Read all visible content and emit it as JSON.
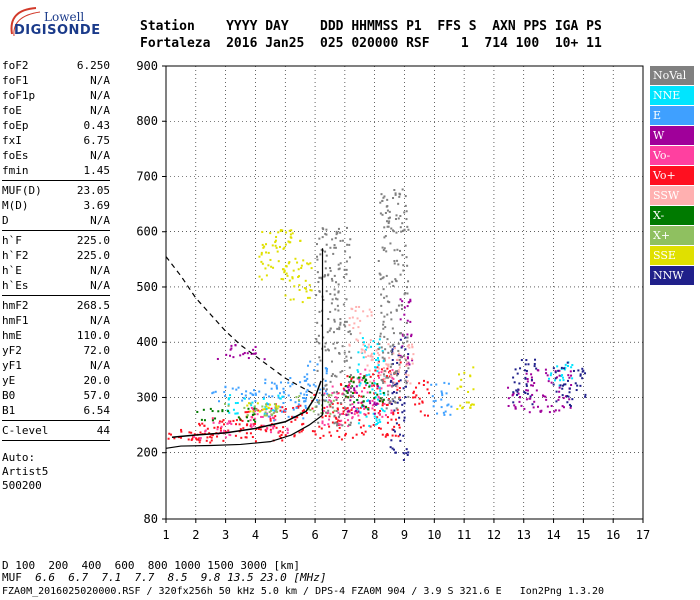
{
  "logo": {
    "line1": "Lowell",
    "line2": "DIGISONDE",
    "swoosh_color": "#d23a2a",
    "text_color": "#1a3a8a"
  },
  "header": {
    "columns": "Station    YYYY DAY    DDD HHMMSS P1  FFS S  AXN PPS IGA PS",
    "values": "Fortaleza  2016 Jan25  025 020000 RSF    1  714 100  10+ 11"
  },
  "params": {
    "group1": [
      {
        "name": "foF2",
        "value": "6.250"
      },
      {
        "name": "foF1",
        "value": "N/A"
      },
      {
        "name": "foF1p",
        "value": "N/A"
      },
      {
        "name": "foE",
        "value": "N/A"
      },
      {
        "name": "foEp",
        "value": "0.43"
      },
      {
        "name": "fxI",
        "value": "6.75"
      },
      {
        "name": "foEs",
        "value": "N/A"
      },
      {
        "name": "fmin",
        "value": "1.45"
      }
    ],
    "group2": [
      {
        "name": "MUF(D)",
        "value": "23.05"
      },
      {
        "name": "M(D)",
        "value": "3.69"
      },
      {
        "name": "D",
        "value": "N/A"
      }
    ],
    "group3": [
      {
        "name": "h`F",
        "value": "225.0"
      },
      {
        "name": "h`F2",
        "value": "225.0"
      },
      {
        "name": "h`E",
        "value": "N/A"
      },
      {
        "name": "h`Es",
        "value": "N/A"
      }
    ],
    "group4": [
      {
        "name": "hmF2",
        "value": "268.5"
      },
      {
        "name": "hmF1",
        "value": "N/A"
      },
      {
        "name": "hmE",
        "value": "110.0"
      },
      {
        "name": "yF2",
        "value": "72.0"
      },
      {
        "name": "yF1",
        "value": "N/A"
      },
      {
        "name": "yE",
        "value": "20.0"
      },
      {
        "name": "B0",
        "value": "57.0"
      },
      {
        "name": "B1",
        "value": "6.54"
      }
    ],
    "group5": [
      {
        "name": "C-level",
        "value": "44"
      }
    ],
    "auto": [
      "Auto:",
      "Artist5",
      "500200"
    ]
  },
  "legend": [
    {
      "label": "NoVal",
      "bg": "#808080",
      "fg": "#ffffff"
    },
    {
      "label": "NNE",
      "bg": "#00e5ff",
      "fg": "#ffffff"
    },
    {
      "label": "E",
      "bg": "#3fa0ff",
      "fg": "#ffffff"
    },
    {
      "label": "W",
      "bg": "#a0009a",
      "fg": "#ffffff"
    },
    {
      "label": "Vo-",
      "bg": "#ff40a0",
      "fg": "#ffffff"
    },
    {
      "label": "Vo+",
      "bg": "#ff1020",
      "fg": "#ffffff"
    },
    {
      "label": "SSW",
      "bg": "#ffb0b0",
      "fg": "#ffffff"
    },
    {
      "label": "X-",
      "bg": "#007a00",
      "fg": "#ffffff"
    },
    {
      "label": "X+",
      "bg": "#8fc060",
      "fg": "#ffffff"
    },
    {
      "label": "SSE",
      "bg": "#e0e000",
      "fg": "#ffffff"
    },
    {
      "label": "NNW",
      "bg": "#20208a",
      "fg": "#ffffff"
    }
  ],
  "chart_data": {
    "type": "scatter",
    "title": "",
    "xlabel": "",
    "ylabel": "",
    "xlim": [
      1,
      17
    ],
    "ylim": [
      80,
      900
    ],
    "x_ticks": [
      1,
      2,
      3,
      4,
      5,
      6,
      7,
      8,
      9,
      10,
      11,
      12,
      13,
      14,
      15,
      16,
      17
    ],
    "y_ticks": [
      80,
      200,
      300,
      400,
      500,
      600,
      700,
      800,
      900
    ],
    "grid": true,
    "legend_position": "right",
    "profile": {
      "style": "solid",
      "x": [
        1.0,
        1.5,
        2.5,
        3.5,
        4.5,
        5.2,
        5.8,
        6.1,
        6.25
      ],
      "y": [
        208,
        212,
        213,
        215,
        220,
        232,
        250,
        262,
        268
      ]
    },
    "profile_vertical": {
      "style": "solid",
      "x": [
        6.25,
        6.25
      ],
      "y": [
        268,
        570
      ]
    },
    "trace_curve": {
      "style": "solid",
      "x": [
        1.2,
        2.0,
        3.0,
        4.0,
        5.0,
        5.7,
        6.0,
        6.2
      ],
      "y": [
        228,
        232,
        236,
        244,
        256,
        275,
        300,
        330
      ]
    },
    "muf_curve": {
      "style": "dashed",
      "x": [
        1.0,
        1.5,
        2.0,
        2.5,
        3.0,
        3.5,
        4.0,
        4.5,
        5.0,
        5.5,
        6.0
      ],
      "y": [
        555,
        520,
        480,
        450,
        420,
        395,
        375,
        355,
        335,
        320,
        305
      ]
    },
    "series": [
      {
        "name": "Vo+",
        "color": "#ff1020",
        "points": [
          [
            1.6,
            230,
            1.6,
            8
          ],
          [
            2.2,
            238,
            1.5,
            18
          ],
          [
            3.2,
            245,
            1.6,
            22
          ],
          [
            4.2,
            252,
            1.4,
            30
          ],
          [
            5.2,
            258,
            1.2,
            32
          ],
          [
            6.3,
            268,
            0.9,
            40
          ],
          [
            7.2,
            285,
            1.0,
            60
          ],
          [
            8.3,
            300,
            1.1,
            70
          ],
          [
            9.5,
            300,
            0.6,
            35
          ]
        ]
      },
      {
        "name": "Vo-",
        "color": "#ff40a0",
        "points": [
          [
            2.5,
            245,
            1.4,
            20
          ],
          [
            4.5,
            262,
            1.4,
            25
          ],
          [
            6.8,
            290,
            1.2,
            40
          ],
          [
            8.0,
            310,
            1.2,
            45
          ]
        ]
      },
      {
        "name": "E",
        "color": "#3fa0ff",
        "points": [
          [
            3.6,
            308,
            2.2,
            14
          ],
          [
            5.0,
            300,
            1.5,
            40
          ],
          [
            6.0,
            330,
            0.8,
            40
          ],
          [
            10.2,
            300,
            0.8,
            30
          ]
        ]
      },
      {
        "name": "NNE",
        "color": "#00e5ff",
        "points": [
          [
            4.0,
            290,
            2.0,
            18
          ],
          [
            7.8,
            330,
            1.0,
            80
          ],
          [
            14.2,
            345,
            0.8,
            25
          ]
        ]
      },
      {
        "name": "W",
        "color": "#a0009a",
        "points": [
          [
            3.5,
            385,
            1.6,
            14
          ],
          [
            7.5,
            300,
            1.2,
            30
          ],
          [
            9.0,
            420,
            0.5,
            60
          ],
          [
            13.8,
            315,
            1.6,
            40
          ],
          [
            12.8,
            300,
            0.8,
            20
          ]
        ]
      },
      {
        "name": "NNW",
        "color": "#20208a",
        "points": [
          [
            13.0,
            330,
            0.8,
            45
          ],
          [
            14.5,
            325,
            1.1,
            40
          ],
          [
            8.8,
            300,
            0.6,
            120
          ]
        ]
      },
      {
        "name": "SSE",
        "color": "#e0e000",
        "points": [
          [
            4.8,
            560,
            1.4,
            45
          ],
          [
            5.4,
            510,
            1.0,
            40
          ],
          [
            11.0,
            320,
            0.6,
            40
          ],
          [
            4.2,
            280,
            1.2,
            12
          ]
        ]
      },
      {
        "name": "X-",
        "color": "#007a00",
        "points": [
          [
            3.0,
            270,
            2.0,
            12
          ],
          [
            7.6,
            310,
            1.4,
            30
          ]
        ]
      },
      {
        "name": "X+",
        "color": "#8fc060",
        "points": [
          [
            3.8,
            280,
            1.8,
            14
          ],
          [
            6.0,
            290,
            1.4,
            20
          ]
        ]
      },
      {
        "name": "SSW",
        "color": "#ffb0b0",
        "points": [
          [
            8.5,
            360,
            1.6,
            40
          ],
          [
            7.5,
            420,
            0.8,
            50
          ]
        ]
      },
      {
        "name": "NoVal",
        "color": "#808080",
        "points": [
          [
            6.6,
            430,
            1.2,
            180
          ],
          [
            8.6,
            480,
            1.0,
            200
          ]
        ]
      }
    ]
  },
  "footer": {
    "d_label": "D",
    "d_values": " 100  200  400  600  800 1000 1500 3000 [km]",
    "muf_label": "MUF",
    "muf_values": "6.6  6.7  7.1  7.7  8.5  9.8 13.5 23.0 [MHz]",
    "line": "FZA0M_2016025020000.RSF / 320fx256h 50 kHz 5.0 km / DPS-4 FZA0M 904 / 3.9 S 321.6 E   Ion2Png 1.3.20"
  }
}
